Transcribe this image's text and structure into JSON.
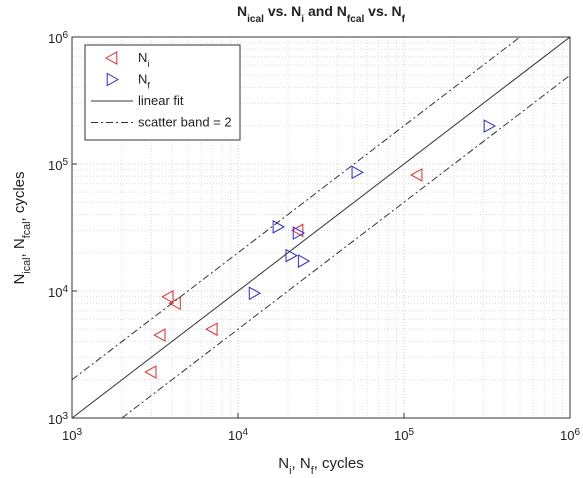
{
  "chart_data": {
    "type": "scatter",
    "title": [
      {
        "text": "N"
      },
      {
        "text": "ical",
        "sub": true
      },
      {
        "text": " vs. N"
      },
      {
        "text": "i",
        "sub": true
      },
      {
        "text": " and N"
      },
      {
        "text": "fcal",
        "sub": true
      },
      {
        "text": " vs. N"
      },
      {
        "text": "f",
        "sub": true
      }
    ],
    "x_label": [
      {
        "text": "N"
      },
      {
        "text": "i",
        "sub": true
      },
      {
        "text": ", N"
      },
      {
        "text": "f",
        "sub": true
      },
      {
        "text": ", cycles"
      }
    ],
    "y_label": [
      {
        "text": "N"
      },
      {
        "text": "ical",
        "sub": true
      },
      {
        "text": ", N"
      },
      {
        "text": "fcal",
        "sub": true
      },
      {
        "text": ", cycles"
      }
    ],
    "x_scale": "log",
    "y_scale": "log",
    "grid": true,
    "minor_grid": true,
    "legend": "upper left",
    "xlim": [
      1000,
      1000000
    ],
    "ylim": [
      1000,
      1000000
    ],
    "xticks": [
      {
        "value": 1000,
        "label": [
          "10",
          "3"
        ]
      },
      {
        "value": 10000,
        "label": [
          "10",
          "4"
        ]
      },
      {
        "value": 100000,
        "label": [
          "10",
          "5"
        ]
      },
      {
        "value": 1000000,
        "label": [
          "10",
          "6"
        ]
      }
    ],
    "yticks": [
      {
        "value": 1000,
        "label": [
          "10",
          "3"
        ]
      },
      {
        "value": 10000,
        "label": [
          "10",
          "4"
        ]
      },
      {
        "value": 100000,
        "label": [
          "10",
          "5"
        ]
      },
      {
        "value": 1000000,
        "label": [
          "10",
          "6"
        ]
      }
    ],
    "series": [
      {
        "name": [
          {
            "text": "N"
          },
          {
            "text": "i",
            "sub": true
          }
        ],
        "kind": "marker",
        "marker": "triangle-left",
        "color": "#e8262e",
        "x": [
          3000,
          3400,
          3800,
          4200,
          7000,
          23000,
          120000
        ],
        "y": [
          2300,
          4500,
          9000,
          8000,
          5000,
          30000,
          82000
        ]
      },
      {
        "name": [
          {
            "text": "N"
          },
          {
            "text": "f",
            "sub": true
          }
        ],
        "kind": "marker",
        "marker": "triangle-right",
        "color": "#2a2ad8",
        "x": [
          12500,
          17400,
          20800,
          23000,
          24700,
          52000,
          325000
        ],
        "y": [
          9600,
          32000,
          19000,
          28600,
          17200,
          86000,
          199000
        ]
      },
      {
        "name": [
          {
            "text": "linear fit"
          }
        ],
        "kind": "line",
        "dash": "solid",
        "color": "#333333",
        "x": [
          1000,
          1000000
        ],
        "y": [
          1000,
          1000000
        ]
      },
      {
        "name": [
          {
            "text": "scatter band = 2"
          }
        ],
        "kind": "line",
        "dash": "dashdot",
        "color": "#333333",
        "x": [
          1000,
          500000,
          null,
          2000,
          1000000
        ],
        "y": [
          2000,
          1000000,
          null,
          1000,
          500000
        ]
      }
    ]
  }
}
